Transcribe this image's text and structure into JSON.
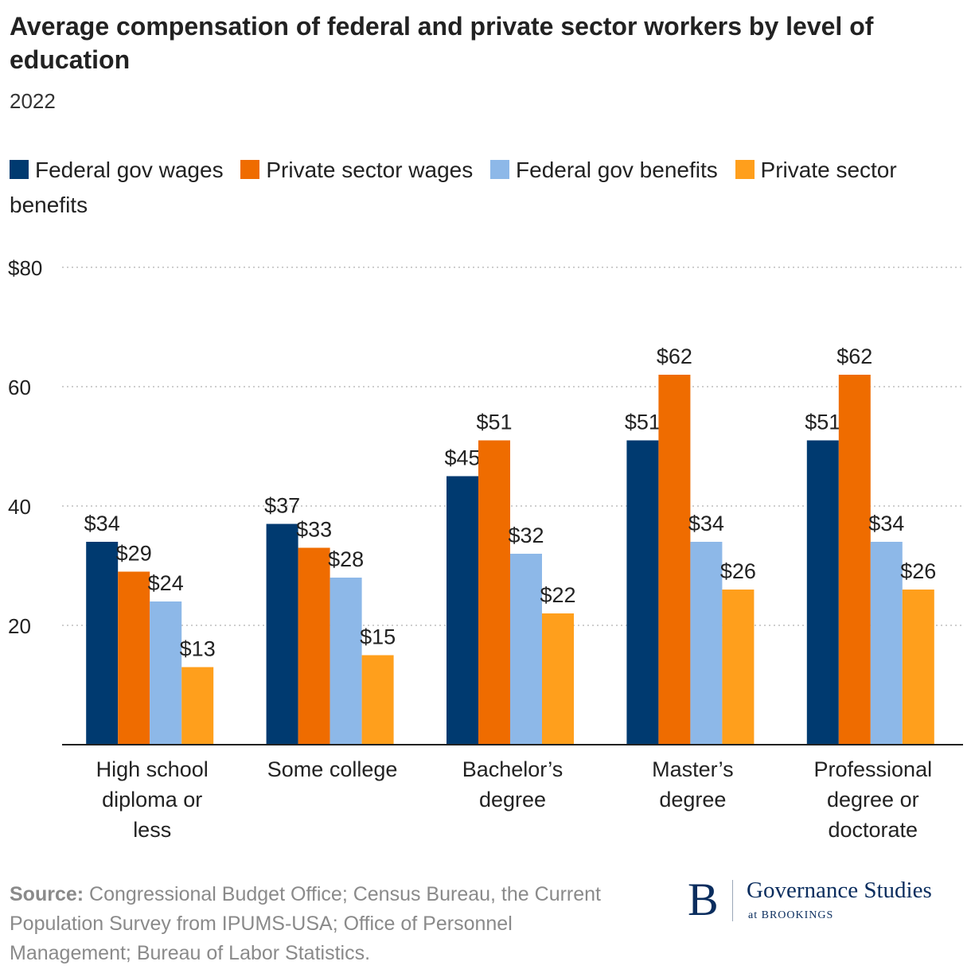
{
  "chart_data": {
    "type": "bar",
    "title": "Average compensation of federal and private sector workers by level of education",
    "subtitle": "2022",
    "categories": [
      [
        "High school",
        "diploma or",
        "less"
      ],
      [
        "Some college"
      ],
      [
        "Bachelor’s",
        "degree"
      ],
      [
        "Master’s",
        "degree"
      ],
      [
        "Professional",
        "degree or",
        "doctorate"
      ]
    ],
    "series": [
      {
        "name": "Federal gov wages",
        "color": "#003a70",
        "values": [
          34,
          37,
          45,
          51,
          51
        ],
        "labels": [
          "$34",
          "$37",
          "$45",
          "$51",
          "$51"
        ]
      },
      {
        "name": "Private sector wages",
        "color": "#ef6c00",
        "values": [
          29,
          33,
          51,
          62,
          62
        ],
        "labels": [
          "$29",
          "$33",
          "$51",
          "$62",
          "$62"
        ]
      },
      {
        "name": "Federal gov benefits",
        "color": "#8db8e8",
        "values": [
          24,
          28,
          32,
          34,
          34
        ],
        "labels": [
          "$24",
          "$28",
          "$32",
          "$34",
          "$34"
        ]
      },
      {
        "name": "Private sector benefits",
        "color": "#ff9f1c",
        "values": [
          13,
          15,
          22,
          26,
          26
        ],
        "labels": [
          "$13",
          "$15",
          "$22",
          "$26",
          "$26"
        ]
      }
    ],
    "y_ticks": [
      20,
      40,
      60,
      80
    ],
    "y_tick_labels": [
      "20",
      "40",
      "60",
      "$80"
    ],
    "ylim": [
      0,
      80
    ],
    "grid": true,
    "legend_position": "top"
  },
  "source": {
    "label": "Source:",
    "text": " Congressional Budget Office; Census Bureau, the Current Population Survey from IPUMS-USA; Office of Personnel Management; Bureau of Labor Statistics."
  },
  "brand": {
    "logo": "B",
    "name": "Governance Studies",
    "sub": "at BROOKINGS"
  }
}
